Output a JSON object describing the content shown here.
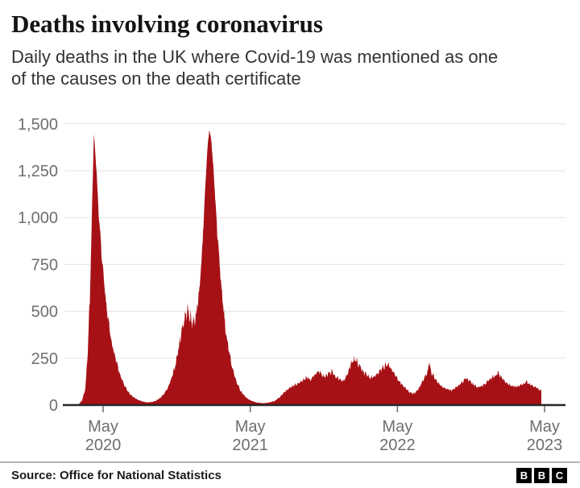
{
  "header": {
    "title": "Deaths involving coronavirus",
    "subtitle_line1": "Daily deaths in the UK where Covid-19 was mentioned as one",
    "subtitle_line2": "of the causes on the death certificate",
    "subtitle": "Daily deaths in the UK where Covid-19 was mentioned as one of the causes on the death certificate"
  },
  "footer": {
    "source": "Source: Office for National Statistics",
    "logo_letters": [
      "B",
      "B",
      "C"
    ]
  },
  "chart_data": {
    "type": "area",
    "title": "Deaths involving coronavirus",
    "series_name": "Daily deaths in the UK where Covid-19 was mentioned on the death certificate",
    "xlabel": "",
    "ylabel": "",
    "ylim": [
      0,
      1500
    ],
    "grid": "horizontal",
    "legend": "none",
    "area_color": "#a61116",
    "axis_line_color": "#262626",
    "gridline_color": "#e2e2e2",
    "tick_label_color": "#6e6e73",
    "yticks": [
      {
        "v": 0,
        "label": "0"
      },
      {
        "v": 250,
        "label": "250"
      },
      {
        "v": 500,
        "label": "500"
      },
      {
        "v": 750,
        "label": "750"
      },
      {
        "v": 1000,
        "label": "1,000"
      },
      {
        "v": 1250,
        "label": "1,250"
      },
      {
        "v": 1500,
        "label": "1,500"
      }
    ],
    "xticks": [
      {
        "date": "2020-05-01",
        "line1": "May",
        "line2": "2020"
      },
      {
        "date": "2021-05-01",
        "line1": "May",
        "line2": "2021"
      },
      {
        "date": "2022-05-01",
        "line1": "May",
        "line2": "2022"
      },
      {
        "date": "2023-05-01",
        "line1": "May",
        "line2": "2023"
      }
    ],
    "keypoints": [
      [
        "2020-02-21",
        0
      ],
      [
        "2020-03-01",
        3
      ],
      [
        "2020-03-10",
        25
      ],
      [
        "2020-03-18",
        90
      ],
      [
        "2020-03-24",
        280
      ],
      [
        "2020-03-29",
        560
      ],
      [
        "2020-04-03",
        1000
      ],
      [
        "2020-04-08",
        1440
      ],
      [
        "2020-04-14",
        1280
      ],
      [
        "2020-04-20",
        1020
      ],
      [
        "2020-04-28",
        780
      ],
      [
        "2020-05-06",
        590
      ],
      [
        "2020-05-14",
        440
      ],
      [
        "2020-05-22",
        340
      ],
      [
        "2020-05-30",
        260
      ],
      [
        "2020-06-10",
        175
      ],
      [
        "2020-06-20",
        115
      ],
      [
        "2020-07-01",
        75
      ],
      [
        "2020-07-12",
        48
      ],
      [
        "2020-07-24",
        30
      ],
      [
        "2020-08-05",
        20
      ],
      [
        "2020-08-18",
        14
      ],
      [
        "2020-08-30",
        16
      ],
      [
        "2020-09-10",
        24
      ],
      [
        "2020-09-20",
        38
      ],
      [
        "2020-09-30",
        62
      ],
      [
        "2020-10-08",
        90
      ],
      [
        "2020-10-16",
        130
      ],
      [
        "2020-10-24",
        185
      ],
      [
        "2020-11-01",
        265
      ],
      [
        "2020-11-08",
        350
      ],
      [
        "2020-11-14",
        420
      ],
      [
        "2020-11-20",
        470
      ],
      [
        "2020-11-26",
        505
      ],
      [
        "2020-12-02",
        475
      ],
      [
        "2020-12-08",
        445
      ],
      [
        "2020-12-14",
        455
      ],
      [
        "2020-12-20",
        510
      ],
      [
        "2020-12-26",
        620
      ],
      [
        "2021-01-01",
        800
      ],
      [
        "2021-01-07",
        1060
      ],
      [
        "2021-01-13",
        1300
      ],
      [
        "2021-01-19",
        1475
      ],
      [
        "2021-01-25",
        1400
      ],
      [
        "2021-02-01",
        1180
      ],
      [
        "2021-02-08",
        930
      ],
      [
        "2021-02-15",
        720
      ],
      [
        "2021-02-22",
        540
      ],
      [
        "2021-03-01",
        400
      ],
      [
        "2021-03-10",
        280
      ],
      [
        "2021-03-19",
        185
      ],
      [
        "2021-03-28",
        120
      ],
      [
        "2021-04-08",
        72
      ],
      [
        "2021-04-20",
        42
      ],
      [
        "2021-05-02",
        24
      ],
      [
        "2021-05-16",
        14
      ],
      [
        "2021-06-01",
        10
      ],
      [
        "2021-06-16",
        13
      ],
      [
        "2021-07-01",
        22
      ],
      [
        "2021-07-16",
        48
      ],
      [
        "2021-07-30",
        78
      ],
      [
        "2021-08-12",
        98
      ],
      [
        "2021-08-26",
        112
      ],
      [
        "2021-09-08",
        132
      ],
      [
        "2021-09-18",
        148
      ],
      [
        "2021-09-27",
        136
      ],
      [
        "2021-10-07",
        158
      ],
      [
        "2021-10-16",
        182
      ],
      [
        "2021-10-25",
        162
      ],
      [
        "2021-11-03",
        150
      ],
      [
        "2021-11-11",
        168
      ],
      [
        "2021-11-19",
        178
      ],
      [
        "2021-11-27",
        158
      ],
      [
        "2021-12-06",
        138
      ],
      [
        "2021-12-14",
        128
      ],
      [
        "2021-12-22",
        142
      ],
      [
        "2021-12-29",
        168
      ],
      [
        "2022-01-05",
        212
      ],
      [
        "2022-01-12",
        248
      ],
      [
        "2022-01-19",
        236
      ],
      [
        "2022-01-27",
        208
      ],
      [
        "2022-02-05",
        182
      ],
      [
        "2022-02-14",
        158
      ],
      [
        "2022-02-22",
        148
      ],
      [
        "2022-03-03",
        154
      ],
      [
        "2022-03-12",
        166
      ],
      [
        "2022-03-21",
        186
      ],
      [
        "2022-03-29",
        202
      ],
      [
        "2022-04-06",
        218
      ],
      [
        "2022-04-13",
        202
      ],
      [
        "2022-04-21",
        176
      ],
      [
        "2022-04-29",
        148
      ],
      [
        "2022-05-09",
        118
      ],
      [
        "2022-05-19",
        94
      ],
      [
        "2022-05-29",
        74
      ],
      [
        "2022-06-08",
        60
      ],
      [
        "2022-06-16",
        68
      ],
      [
        "2022-06-25",
        94
      ],
      [
        "2022-07-03",
        128
      ],
      [
        "2022-07-10",
        158
      ],
      [
        "2022-07-16",
        182
      ],
      [
        "2022-07-19",
        232
      ],
      [
        "2022-07-23",
        176
      ],
      [
        "2022-08-01",
        146
      ],
      [
        "2022-08-11",
        118
      ],
      [
        "2022-08-21",
        96
      ],
      [
        "2022-09-01",
        84
      ],
      [
        "2022-09-11",
        78
      ],
      [
        "2022-09-21",
        90
      ],
      [
        "2022-10-01",
        106
      ],
      [
        "2022-10-10",
        126
      ],
      [
        "2022-10-18",
        144
      ],
      [
        "2022-10-27",
        128
      ],
      [
        "2022-11-06",
        108
      ],
      [
        "2022-11-16",
        94
      ],
      [
        "2022-11-26",
        100
      ],
      [
        "2022-12-06",
        116
      ],
      [
        "2022-12-15",
        136
      ],
      [
        "2022-12-23",
        150
      ],
      [
        "2022-12-31",
        160
      ],
      [
        "2023-01-07",
        170
      ],
      [
        "2023-01-15",
        148
      ],
      [
        "2023-01-23",
        124
      ],
      [
        "2023-02-02",
        108
      ],
      [
        "2023-02-12",
        100
      ],
      [
        "2023-02-22",
        97
      ],
      [
        "2023-03-04",
        106
      ],
      [
        "2023-03-12",
        116
      ],
      [
        "2023-03-18",
        126
      ],
      [
        "2023-03-25",
        114
      ],
      [
        "2023-04-02",
        103
      ],
      [
        "2023-04-10",
        93
      ],
      [
        "2023-04-16",
        85
      ],
      [
        "2023-04-23",
        76
      ]
    ]
  }
}
